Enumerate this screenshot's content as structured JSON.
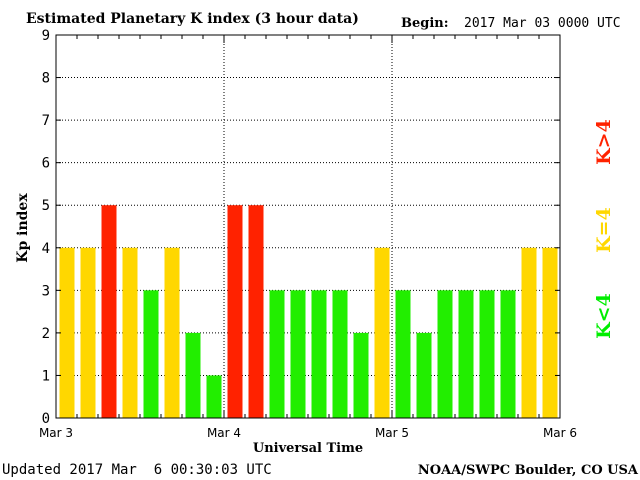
{
  "chart_data": {
    "type": "bar",
    "title": "Estimated Planetary K index (3 hour data)",
    "begin_label": "Begin:",
    "begin_value": "2017 Mar 03 0000 UTC",
    "xlabel": "Universal Time",
    "ylabel": "Kp index",
    "ylim": [
      0,
      9
    ],
    "yticks": [
      "0",
      "1",
      "2",
      "3",
      "4",
      "5",
      "6",
      "7",
      "8",
      "9"
    ],
    "xticks": [
      "Mar 3",
      "Mar 4",
      "Mar 5",
      "Mar 6"
    ],
    "grid": true,
    "values": [
      4,
      4,
      5,
      4,
      3,
      4,
      2,
      1,
      5,
      5,
      3,
      3,
      3,
      3,
      2,
      4,
      3,
      2,
      3,
      3,
      3,
      3,
      4,
      4
    ],
    "legend": [
      {
        "label": "K<4",
        "color": "#00ee00"
      },
      {
        "label": "K=4",
        "color": "#ffd700"
      },
      {
        "label": "K>4",
        "color": "#ff2200"
      }
    ],
    "colors": {
      "low": "#22ee00",
      "equal": "#ffd700",
      "high": "#ff2200"
    },
    "updated": "Updated 2017 Mar  6 00:30:03 UTC",
    "source": "NOAA/SWPC Boulder, CO USA"
  }
}
